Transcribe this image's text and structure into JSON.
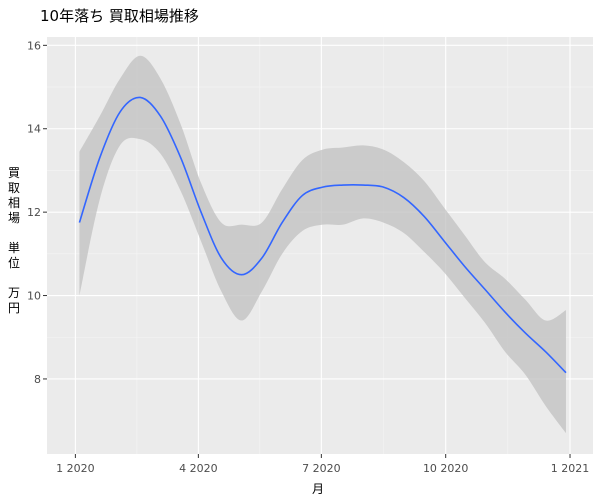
{
  "chart_data": {
    "type": "line",
    "title": "10年落ち 買取相場推移",
    "xlabel": "月",
    "ylabel": [
      "買",
      "取",
      "相",
      "場",
      "",
      "単",
      "位",
      "",
      "万",
      "円"
    ],
    "x_ticks": [
      "1 2020",
      "4 2020",
      "7 2020",
      "10 2020",
      "1 2021"
    ],
    "x_tick_dates": [
      "2020-01-01",
      "2020-04-01",
      "2020-07-01",
      "2020-10-01",
      "2021-01-01"
    ],
    "xlim": [
      "2019-12-11",
      "2021-01-18"
    ],
    "y_ticks": [
      8,
      10,
      12,
      14,
      16
    ],
    "ylim": [
      6.2,
      16.2
    ],
    "grid": true,
    "colors": {
      "panel": "#ebebeb",
      "grid_major": "#ffffff",
      "line": "#3366ff",
      "ribbon": "#bebebe"
    },
    "series": [
      {
        "x": [
          "2020-01-04",
          "2020-01-19",
          "2020-02-03",
          "2020-02-18",
          "2020-03-04",
          "2020-03-19",
          "2020-04-03",
          "2020-04-18",
          "2020-05-03",
          "2020-05-18",
          "2020-06-02",
          "2020-06-17",
          "2020-07-02",
          "2020-07-17",
          "2020-08-01",
          "2020-08-16",
          "2020-08-31",
          "2020-09-15",
          "2020-09-30",
          "2020-10-15",
          "2020-10-30",
          "2020-11-14",
          "2020-11-29",
          "2020-12-14",
          "2020-12-29"
        ],
        "y": [
          11.75,
          13.3,
          14.4,
          14.75,
          14.3,
          13.3,
          12.0,
          10.9,
          10.5,
          10.9,
          11.75,
          12.4,
          12.6,
          12.65,
          12.65,
          12.6,
          12.35,
          11.9,
          11.3,
          10.7,
          10.15,
          9.6,
          9.1,
          8.65,
          8.15
        ],
        "lower": [
          10.0,
          12.3,
          13.6,
          13.75,
          13.4,
          12.5,
          11.3,
          10.1,
          9.4,
          10.1,
          11.0,
          11.55,
          11.7,
          11.7,
          11.85,
          11.75,
          11.5,
          11.05,
          10.55,
          9.95,
          9.35,
          8.65,
          8.1,
          7.35,
          6.7
        ],
        "upper": [
          13.45,
          14.3,
          15.2,
          15.75,
          15.2,
          14.1,
          12.7,
          11.75,
          11.7,
          11.75,
          12.55,
          13.25,
          13.5,
          13.55,
          13.6,
          13.5,
          13.2,
          12.75,
          12.1,
          11.45,
          10.8,
          10.4,
          9.9,
          9.4,
          9.65
        ]
      }
    ]
  }
}
